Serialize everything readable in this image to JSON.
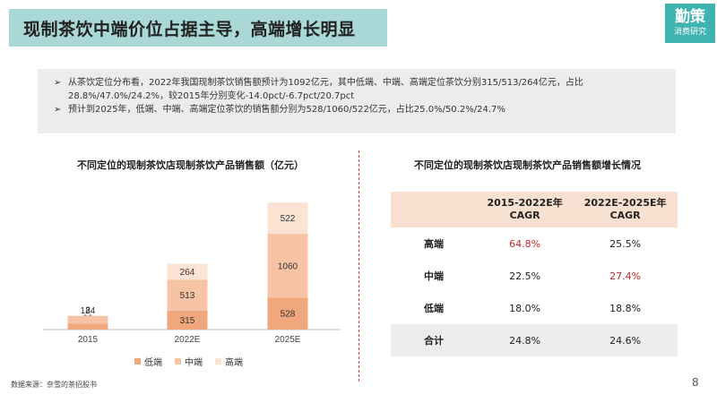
{
  "header": {
    "title": "现制茶饮中端价位占据主导，高端增长明显"
  },
  "logo": {
    "line1": "勤策",
    "line2": "消费研究"
  },
  "summary": {
    "bullet1": "从茶饮定位分布看，2022年我国现制茶饮销售额预计为1092亿元，其中低端、中端、高端定位茶饮分别315/513/264亿元，占比28.8%/47.0%/24.2%，较2015年分别变化-14.0pct/-6.7pct/20.7pct",
    "bullet2": "预计到2025年，低端、中端、高端定位茶饮的销售额分别为528/1060/522亿元，占比25.0%/50.2%/24.7%",
    "arrow": "➢"
  },
  "chart_data": {
    "type": "bar",
    "stacked": true,
    "title": "不同定位的现制茶饮店现制茶饮产品销售额（亿元）",
    "categories": [
      "2015",
      "2022E",
      "2025E"
    ],
    "series": [
      {
        "name": "低端",
        "values": [
          99,
          315,
          528
        ],
        "color": "#f0a77c"
      },
      {
        "name": "中端",
        "values": [
          124,
          513,
          1060
        ],
        "color": "#f6c3a4"
      },
      {
        "name": "高端",
        "values": [
          8,
          264,
          522
        ],
        "color": "#fbe3d3"
      }
    ],
    "grid": false,
    "legend_position": "bottom"
  },
  "cagr_table": {
    "title": "不同定位的现制茶饮店现制茶饮产品销售额增长情况",
    "headers": [
      "",
      "2015-2022E年\nCAGR",
      "2022E-2025E年\nCAGR"
    ],
    "rows": [
      {
        "label": "高端",
        "v1": "64.8%",
        "v2": "25.5%",
        "hl1": true,
        "hl2": false
      },
      {
        "label": "中端",
        "v1": "22.5%",
        "v2": "27.4%",
        "hl1": false,
        "hl2": true
      },
      {
        "label": "低端",
        "v1": "18.0%",
        "v2": "18.8%",
        "hl1": false,
        "hl2": false
      },
      {
        "label": "合计",
        "v1": "24.8%",
        "v2": "24.6%",
        "hl1": false,
        "hl2": false
      }
    ],
    "highlight_color": "#c0282d"
  },
  "footer": {
    "source": "数据来源：奈雪的茶招股书",
    "page": "8"
  }
}
